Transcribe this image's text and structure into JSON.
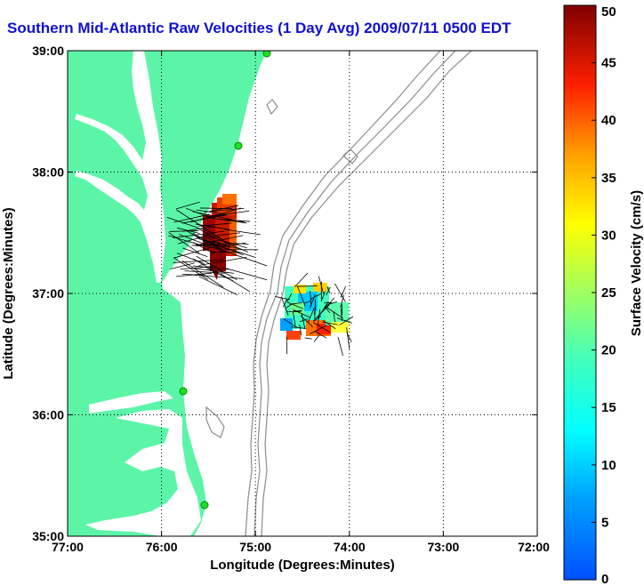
{
  "title": "Southern Mid-Atlantic Raw Velocities (1 Day Avg) 2009/07/11 0500 EDT",
  "x_axis": {
    "label": "Longitude (Degrees:Minutes)",
    "ticks": [
      "77:00",
      "76:00",
      "75:00",
      "74:00",
      "73:00",
      "72:00"
    ]
  },
  "y_axis": {
    "label": "Latitude (Degrees:Minutes)",
    "ticks": [
      "39:00",
      "38:00",
      "37:00",
      "36:00",
      "35:00"
    ]
  },
  "colorbar": {
    "label": "Surface Velocity (cm/s)",
    "ticks": [
      "50",
      "45",
      "40",
      "35",
      "30",
      "25",
      "20",
      "15",
      "10",
      "5",
      "0"
    ],
    "min": 0,
    "max": 50,
    "colormap": "jet"
  },
  "map": {
    "lon_range": [
      -77,
      -72
    ],
    "lat_range": [
      35,
      39
    ],
    "land_color": "#5cf5a8",
    "bathymetry_color": "#8c8c8c",
    "grid": "dotted",
    "stations": [
      "green-circle",
      "green-circle",
      "green-circle",
      "green-circle"
    ]
  }
}
